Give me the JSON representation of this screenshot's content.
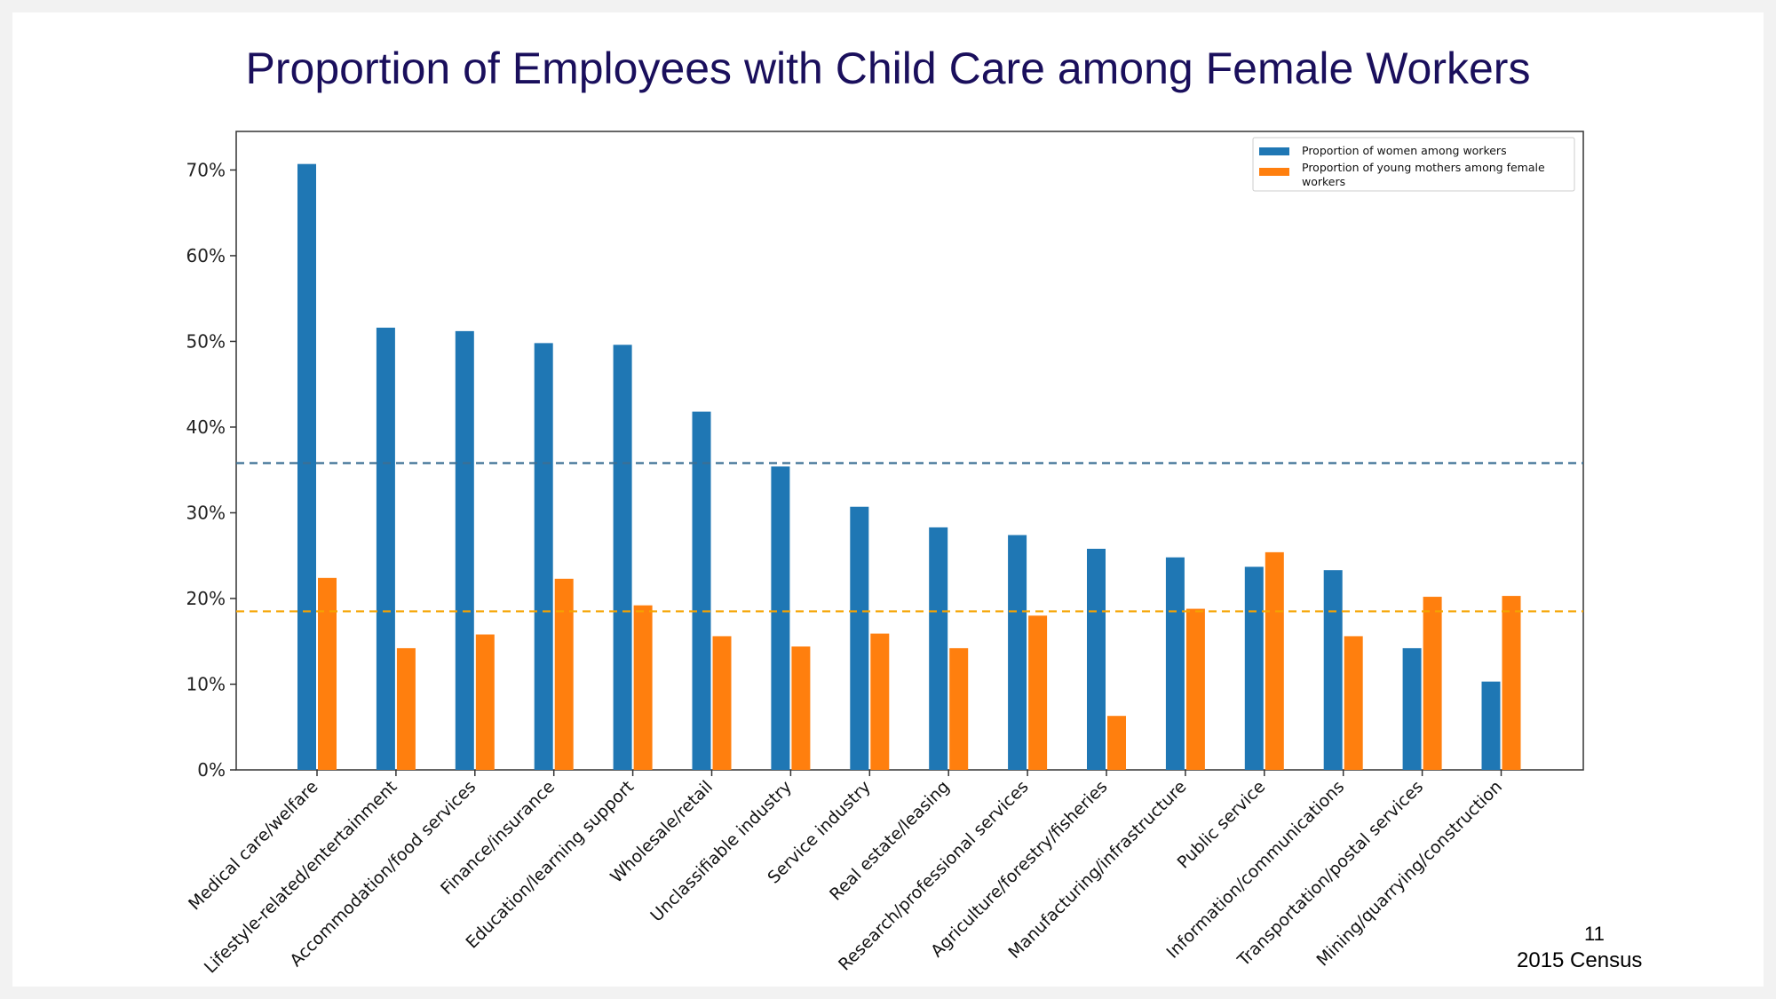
{
  "slide": {
    "title": "Proportion of Employees with Child Care among Female Workers",
    "page_number": "11",
    "source_note": "2015 Census"
  },
  "colors": {
    "women": "#1f77b4",
    "mothers": "#ff7f0e",
    "women_avg_line": "#3b6f94",
    "mothers_avg_line": "#f5a300",
    "title": "#1a0f5c"
  },
  "chart_data": {
    "type": "bar",
    "categories": [
      "Medical care/welfare",
      "Lifestyle-related/entertainment",
      "Accommodation/food services",
      "Finance/insurance",
      "Education/learning support",
      "Wholesale/retail",
      "Unclassifiable industry",
      "Service industry",
      "Real estate/leasing",
      "Research/professional services",
      "Agriculture/forestry/fisheries",
      "Manufacturing/infrastructure",
      "Public service",
      "Information/communications",
      "Transportation/postal services",
      "Mining/quarrying/construction"
    ],
    "series": [
      {
        "name": "Proportion of women among workers",
        "values": [
          70.7,
          51.6,
          51.2,
          49.8,
          49.6,
          41.8,
          35.4,
          30.7,
          28.3,
          27.4,
          25.8,
          24.8,
          23.7,
          23.3,
          14.2,
          10.3
        ]
      },
      {
        "name": "Proportion of young mothers among female workers",
        "values": [
          22.4,
          14.2,
          15.8,
          22.3,
          19.2,
          15.6,
          14.4,
          15.9,
          14.2,
          18.0,
          6.3,
          18.8,
          25.4,
          15.6,
          20.2,
          20.3
        ]
      }
    ],
    "reference_lines": [
      {
        "series": "Proportion of women among workers",
        "value": 35.8,
        "style": "dashed"
      },
      {
        "series": "Proportion of young mothers among female workers",
        "value": 18.5,
        "style": "dashed"
      }
    ],
    "ylim": [
      0,
      74.5
    ],
    "yticks": [
      0,
      10,
      20,
      30,
      40,
      50,
      60,
      70
    ],
    "ytick_format": "%",
    "grid": false,
    "legend_position": "top-right"
  }
}
